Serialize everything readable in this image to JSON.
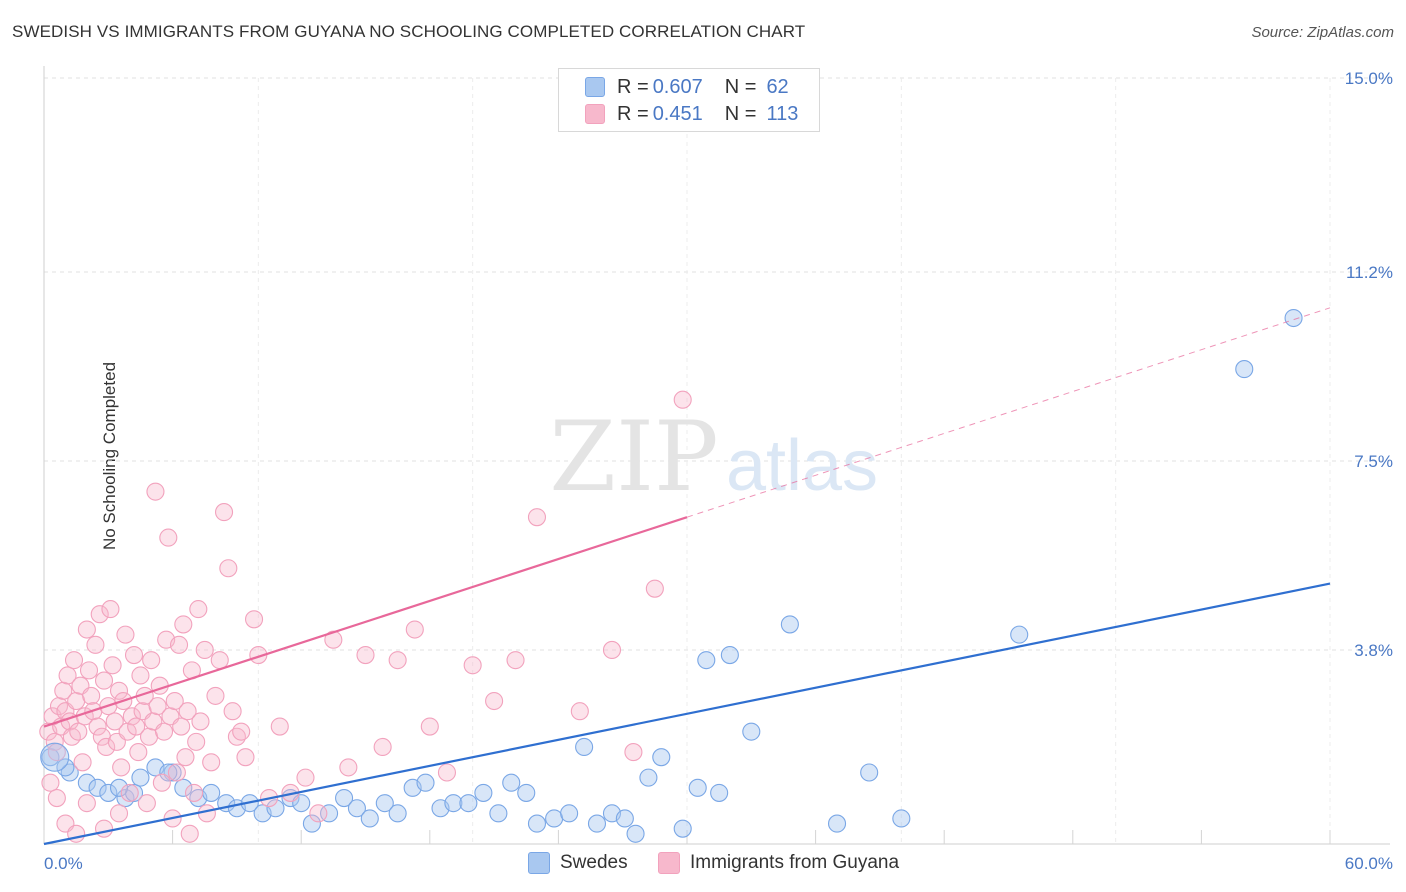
{
  "title": "SWEDISH VS IMMIGRANTS FROM GUYANA NO SCHOOLING COMPLETED CORRELATION CHART",
  "source": "Source: ZipAtlas.com",
  "watermark": {
    "zip": "ZIP",
    "atlas": "atlas"
  },
  "legend_top": [
    {
      "r_label": "R =",
      "r_value": "0.607",
      "n_label": "N =",
      "n_value": "62",
      "color": "#a9c8f0"
    },
    {
      "r_label": "R =",
      "r_value": "0.451",
      "n_label": "N =",
      "n_value": "113",
      "color": "#f7b8cc"
    }
  ],
  "legend_bottom": [
    {
      "label": "Swedes",
      "color": "#a9c8f0"
    },
    {
      "label": "Immigrants from Guyana",
      "color": "#f7b8cc"
    }
  ],
  "chart_data": {
    "type": "scatter",
    "ylabel": "No Schooling Completed",
    "xlim": [
      0,
      60
    ],
    "ylim": [
      0,
      15
    ],
    "x_tick_labels": [
      {
        "value": 0,
        "label": "0.0%"
      },
      {
        "value": 60,
        "label": "60.0%"
      }
    ],
    "y_tick_labels": [
      {
        "value": 3.8,
        "label": "3.8%"
      },
      {
        "value": 7.5,
        "label": "7.5%"
      },
      {
        "value": 11.2,
        "label": "11.2%"
      },
      {
        "value": 15.0,
        "label": "15.0%"
      }
    ],
    "series": [
      {
        "name": "Swedes",
        "color": "#7aa7e6",
        "trend_color": "#2f6fd0",
        "trend": {
          "x0": 0,
          "y0": 0.0,
          "x1": 60,
          "y1": 5.1,
          "dashed_from": null
        },
        "points": [
          [
            0.3,
            1.7
          ],
          [
            1.2,
            1.4
          ],
          [
            2.0,
            1.2
          ],
          [
            2.5,
            1.1
          ],
          [
            3.0,
            1.0
          ],
          [
            3.8,
            0.9
          ],
          [
            4.2,
            1.0
          ],
          [
            4.5,
            1.3
          ],
          [
            5.2,
            1.5
          ],
          [
            6.0,
            1.4
          ],
          [
            6.5,
            1.1
          ],
          [
            7.2,
            0.9
          ],
          [
            7.8,
            1.0
          ],
          [
            8.5,
            0.8
          ],
          [
            9.0,
            0.7
          ],
          [
            9.6,
            0.8
          ],
          [
            10.2,
            0.6
          ],
          [
            10.8,
            0.7
          ],
          [
            11.5,
            0.9
          ],
          [
            12.0,
            0.8
          ],
          [
            12.5,
            0.4
          ],
          [
            13.3,
            0.6
          ],
          [
            14.0,
            0.9
          ],
          [
            14.6,
            0.7
          ],
          [
            15.2,
            0.5
          ],
          [
            15.9,
            0.8
          ],
          [
            16.5,
            0.6
          ],
          [
            17.2,
            1.1
          ],
          [
            17.8,
            1.2
          ],
          [
            18.5,
            0.7
          ],
          [
            19.1,
            0.8
          ],
          [
            19.8,
            0.8
          ],
          [
            20.5,
            1.0
          ],
          [
            21.2,
            0.6
          ],
          [
            21.8,
            1.2
          ],
          [
            22.5,
            1.0
          ],
          [
            23.0,
            0.4
          ],
          [
            23.8,
            0.5
          ],
          [
            24.5,
            0.6
          ],
          [
            25.2,
            1.9
          ],
          [
            25.8,
            0.4
          ],
          [
            26.5,
            0.6
          ],
          [
            27.1,
            0.5
          ],
          [
            27.6,
            0.2
          ],
          [
            28.2,
            1.3
          ],
          [
            28.8,
            1.7
          ],
          [
            29.8,
            0.3
          ],
          [
            30.5,
            1.1
          ],
          [
            30.9,
            3.6
          ],
          [
            31.5,
            1.0
          ],
          [
            32.0,
            3.7
          ],
          [
            33.0,
            2.2
          ],
          [
            34.8,
            4.3
          ],
          [
            37.0,
            0.4
          ],
          [
            38.5,
            1.4
          ],
          [
            40.0,
            0.5
          ],
          [
            45.5,
            4.1
          ],
          [
            56.0,
            9.3
          ],
          [
            58.3,
            10.3
          ],
          [
            1.0,
            1.5
          ],
          [
            3.5,
            1.1
          ],
          [
            5.8,
            1.4
          ]
        ]
      },
      {
        "name": "Immigrants from Guyana",
        "color": "#f2a2bd",
        "trend_color": "#e8689a",
        "trend": {
          "x0": 0,
          "y0": 2.3,
          "x1": 60,
          "y1": 10.5,
          "dashed_from": 30
        },
        "points": [
          [
            0.2,
            2.2
          ],
          [
            0.4,
            2.5
          ],
          [
            0.5,
            2.0
          ],
          [
            0.6,
            1.8
          ],
          [
            0.7,
            2.7
          ],
          [
            0.8,
            2.3
          ],
          [
            0.9,
            3.0
          ],
          [
            1.0,
            2.6
          ],
          [
            1.1,
            3.3
          ],
          [
            1.2,
            2.4
          ],
          [
            1.3,
            2.1
          ],
          [
            1.4,
            3.6
          ],
          [
            1.5,
            2.8
          ],
          [
            1.6,
            2.2
          ],
          [
            1.7,
            3.1
          ],
          [
            1.8,
            1.6
          ],
          [
            1.9,
            2.5
          ],
          [
            2.0,
            4.2
          ],
          [
            2.1,
            3.4
          ],
          [
            2.2,
            2.9
          ],
          [
            2.3,
            2.6
          ],
          [
            2.4,
            3.9
          ],
          [
            2.5,
            2.3
          ],
          [
            2.6,
            4.5
          ],
          [
            2.7,
            2.1
          ],
          [
            2.8,
            3.2
          ],
          [
            2.9,
            1.9
          ],
          [
            3.0,
            2.7
          ],
          [
            3.1,
            4.6
          ],
          [
            3.2,
            3.5
          ],
          [
            3.3,
            2.4
          ],
          [
            3.4,
            2.0
          ],
          [
            3.5,
            3.0
          ],
          [
            3.6,
            1.5
          ],
          [
            3.7,
            2.8
          ],
          [
            3.8,
            4.1
          ],
          [
            3.9,
            2.2
          ],
          [
            4.0,
            1.0
          ],
          [
            4.1,
            2.5
          ],
          [
            4.2,
            3.7
          ],
          [
            4.3,
            2.3
          ],
          [
            4.4,
            1.8
          ],
          [
            4.5,
            3.3
          ],
          [
            4.6,
            2.6
          ],
          [
            4.7,
            2.9
          ],
          [
            4.8,
            0.8
          ],
          [
            4.9,
            2.1
          ],
          [
            5.0,
            3.6
          ],
          [
            5.1,
            2.4
          ],
          [
            5.2,
            6.9
          ],
          [
            5.3,
            2.7
          ],
          [
            5.4,
            3.1
          ],
          [
            5.5,
            1.2
          ],
          [
            5.6,
            2.2
          ],
          [
            5.7,
            4.0
          ],
          [
            5.8,
            6.0
          ],
          [
            5.9,
            2.5
          ],
          [
            6.0,
            0.5
          ],
          [
            6.1,
            2.8
          ],
          [
            6.2,
            1.4
          ],
          [
            6.3,
            3.9
          ],
          [
            6.4,
            2.3
          ],
          [
            6.5,
            4.3
          ],
          [
            6.6,
            1.7
          ],
          [
            6.7,
            2.6
          ],
          [
            6.8,
            0.2
          ],
          [
            6.9,
            3.4
          ],
          [
            7.0,
            1.0
          ],
          [
            7.1,
            2.0
          ],
          [
            7.2,
            4.6
          ],
          [
            7.3,
            2.4
          ],
          [
            7.5,
            3.8
          ],
          [
            7.6,
            0.6
          ],
          [
            7.8,
            1.6
          ],
          [
            8.0,
            2.9
          ],
          [
            8.2,
            3.6
          ],
          [
            8.4,
            6.5
          ],
          [
            8.6,
            5.4
          ],
          [
            8.8,
            2.6
          ],
          [
            9.0,
            2.1
          ],
          [
            9.4,
            1.7
          ],
          [
            9.8,
            4.4
          ],
          [
            10.0,
            3.7
          ],
          [
            10.5,
            0.9
          ],
          [
            11.0,
            2.3
          ],
          [
            11.5,
            1.0
          ],
          [
            12.2,
            1.3
          ],
          [
            12.8,
            0.6
          ],
          [
            13.5,
            4.0
          ],
          [
            14.2,
            1.5
          ],
          [
            15.0,
            3.7
          ],
          [
            15.8,
            1.9
          ],
          [
            16.5,
            3.6
          ],
          [
            17.3,
            4.2
          ],
          [
            18.0,
            2.3
          ],
          [
            18.8,
            1.4
          ],
          [
            20.0,
            3.5
          ],
          [
            21.0,
            2.8
          ],
          [
            22.0,
            3.6
          ],
          [
            23.0,
            6.4
          ],
          [
            25.0,
            2.6
          ],
          [
            26.5,
            3.8
          ],
          [
            27.5,
            1.8
          ],
          [
            28.5,
            5.0
          ],
          [
            29.8,
            8.7
          ],
          [
            0.3,
            1.2
          ],
          [
            0.6,
            0.9
          ],
          [
            1.0,
            0.4
          ],
          [
            1.5,
            0.2
          ],
          [
            2.0,
            0.8
          ],
          [
            2.8,
            0.3
          ],
          [
            3.5,
            0.6
          ],
          [
            9.2,
            2.2
          ]
        ]
      }
    ]
  }
}
